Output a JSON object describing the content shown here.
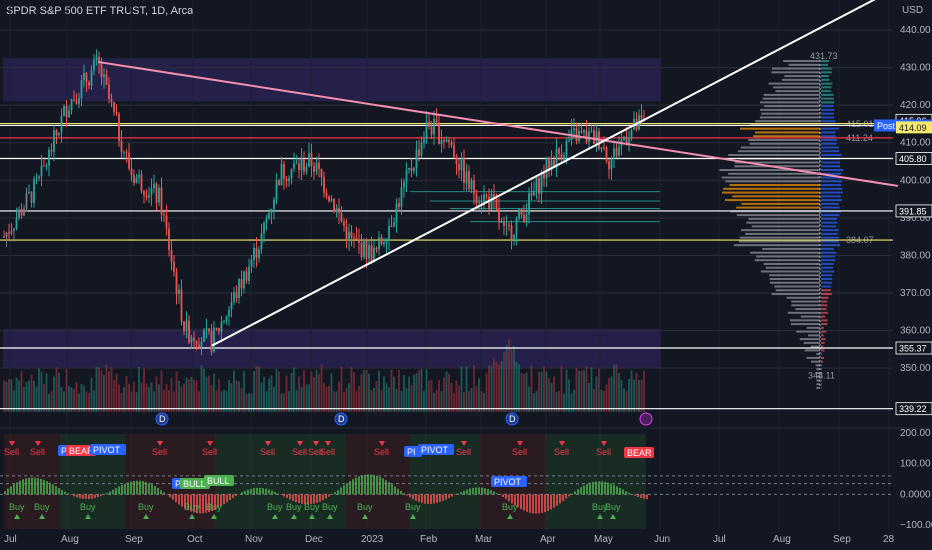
{
  "header": {
    "title": "SPDR S&P 500 ETF TRUST, 1D, Arca"
  },
  "colors": {
    "bg": "#131722",
    "up": "#26a69a",
    "down": "#ef5350",
    "grey": "#787b86",
    "zone": "#3a2d7a",
    "pink_line": "#f48fb1",
    "white": "#ffffff",
    "yellow": "#f5e86a",
    "red_line": "#f23645",
    "orange": "#ff9800",
    "bear": "#f23645",
    "bull": "#4caf50",
    "pivot": "#2962ff"
  },
  "chart_data": [
    {
      "type": "candlestick",
      "title": "SPDR S&P 500 ETF TRUST, 1D, Arca",
      "currency": "USD",
      "x_ticks": [
        "Jul",
        "Aug",
        "Sep",
        "Oct",
        "Nov",
        "Dec",
        "2023",
        "Feb",
        "Mar",
        "Apr",
        "May",
        "Jun",
        "Jul",
        "Aug",
        "Sep",
        "28"
      ],
      "y_ticks": [
        350,
        360,
        370,
        380,
        390,
        400,
        410,
        420,
        430,
        440
      ],
      "ylim": [
        339,
        447
      ],
      "high_marker": 431.73,
      "low_marker": 348.11,
      "volume_profile_label": 384.07,
      "vp_upper_label": 411.24,
      "vp_top_label": 415.01,
      "price_labels": [
        {
          "value": "415.96",
          "color": "#131722"
        },
        {
          "value": "414.59",
          "color": "#2962ff",
          "tag": "Post"
        },
        {
          "value": "414.09",
          "color": "#f5e86a"
        },
        {
          "value": "405.80",
          "color": "#131722"
        },
        {
          "value": "391.85",
          "color": "#131722"
        },
        {
          "value": "355.37",
          "color": "#131722"
        },
        {
          "value": "339.22",
          "color": "#131722"
        }
      ],
      "horizontal_levels": [
        {
          "value": 415.1,
          "color": "#f5e86a"
        },
        {
          "value": 414.6,
          "color": "#ffffff"
        },
        {
          "value": 411.3,
          "color": "#f23645"
        },
        {
          "value": 405.8,
          "color": "#ffffff"
        },
        {
          "value": 391.85,
          "color": "#ffffff"
        },
        {
          "value": 384.1,
          "color": "#f5e86a"
        },
        {
          "value": 355.37,
          "color": "#ffffff"
        },
        {
          "value": 339.22,
          "color": "#ffffff"
        }
      ],
      "closes_monthly": [
        {
          "month": "Jul",
          "value": 411
        },
        {
          "month": "Aug",
          "value": 396
        },
        {
          "month": "Sep",
          "value": 357
        },
        {
          "month": "Oct",
          "value": 386
        },
        {
          "month": "Nov",
          "value": 407
        },
        {
          "month": "Dec",
          "value": 382
        },
        {
          "month": "Jan",
          "value": 406
        },
        {
          "month": "Feb",
          "value": 396
        },
        {
          "month": "Mar",
          "value": 409
        },
        {
          "month": "Apr",
          "value": 415
        },
        {
          "month": "May",
          "value": 414
        }
      ]
    },
    {
      "type": "oscillator",
      "y_ticks": [
        "200.00",
        "100.00",
        "0.0000",
        "−100.00"
      ],
      "ylim": [
        -160,
        230
      ],
      "labels": [
        "Sell",
        "Buy",
        "PIVOT",
        "BEAR",
        "BULL"
      ]
    }
  ],
  "oscillator_tags": {
    "sell": "Sell",
    "buy": "Buy",
    "pivot": "PIVOT",
    "bear": "BEAR",
    "bull": "BULL",
    "pv": "PI"
  }
}
